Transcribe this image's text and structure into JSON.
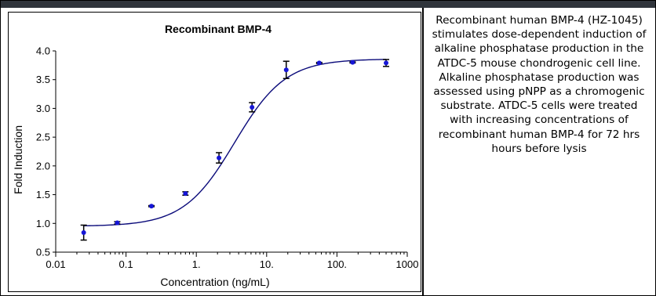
{
  "chart_data": {
    "type": "scatter",
    "title": "Recombinant BMP-4",
    "xlabel": "Concentration (ng/mL)",
    "ylabel": "Fold Induction",
    "xscale": "log",
    "xlim": [
      0.01,
      1000
    ],
    "ylim": [
      0.5,
      4.0
    ],
    "xticks": [
      0.01,
      0.1,
      1,
      10,
      100,
      1000
    ],
    "xtick_labels": [
      "0.01",
      "0.1",
      "1.",
      "10.",
      "100.",
      "1000"
    ],
    "yticks": [
      0.5,
      1.0,
      1.5,
      2.0,
      2.5,
      3.0,
      3.5,
      4.0
    ],
    "ytick_labels": [
      "0.5",
      "1.0",
      "1.5",
      "2.0",
      "2.5",
      "3.0",
      "3.5",
      "4.0"
    ],
    "grid": false,
    "legend": "none",
    "series": [
      {
        "points": [
          {
            "x": 0.025,
            "y": 0.84,
            "err": 0.13
          },
          {
            "x": 0.075,
            "y": 1.01,
            "err": 0.02
          },
          {
            "x": 0.23,
            "y": 1.3,
            "err": 0.01
          },
          {
            "x": 0.7,
            "y": 1.52,
            "err": 0.03
          },
          {
            "x": 2.1,
            "y": 2.14,
            "err": 0.09
          },
          {
            "x": 6.2,
            "y": 3.02,
            "err": 0.08
          },
          {
            "x": 19,
            "y": 3.67,
            "err": 0.15
          },
          {
            "x": 56,
            "y": 3.79,
            "err": 0.01
          },
          {
            "x": 167,
            "y": 3.8,
            "err": 0.01
          },
          {
            "x": 500,
            "y": 3.79,
            "err": 0.06
          }
        ],
        "fit": {
          "bottom": 0.95,
          "top": 3.86,
          "ec50": 3.5,
          "hill": 1.2
        }
      }
    ]
  },
  "colors": {
    "point": "#1616d6",
    "curve": "#0a0a7a",
    "error_bar": "#000000",
    "top_bar": "#30353c"
  },
  "description": {
    "text": "Recombinant human BMP-4 (HZ-1045) stimulates dose-dependent induction of alkaline phosphatase production in the ATDC-5 mouse chondrogenic cell line. Alkaline phosphatase production was assessed using pNPP as a chromogenic substrate. ATDC-5 cells were treated with increasing concentrations of recombinant human BMP-4 for 72 hrs hours before lysis"
  }
}
